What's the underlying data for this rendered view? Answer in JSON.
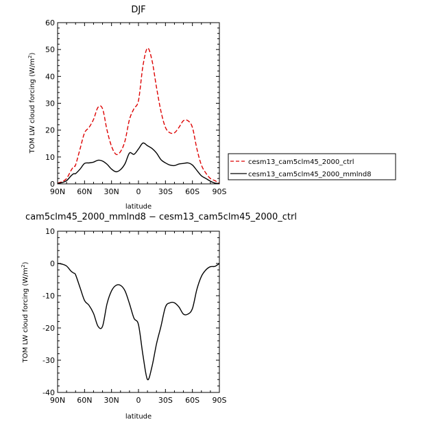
{
  "colors": {
    "ctrl": "#dd0000",
    "mmlnd8": "#000000",
    "diff": "#000000",
    "axis": "#000000"
  },
  "legend": {
    "entries": [
      "cesm13_cam5clm45_2000_ctrl",
      "cesm13_cam5clm45_2000_mmlnd8"
    ],
    "placement": "right"
  },
  "chart_data": [
    {
      "type": "line",
      "title": "DJF",
      "xlabel": "latitude",
      "ylabel": "TOM LW cloud forcing (W/m²)",
      "ylabel_main": "TOM LW cloud forcing (W/m",
      "ylabel_exp": "2",
      "ylabel_end": ")",
      "xlim": [
        90,
        -90
      ],
      "ylim": [
        0,
        60
      ],
      "yticks": [
        0,
        10,
        20,
        30,
        40,
        50,
        60
      ],
      "xticks": [
        90,
        60,
        30,
        0,
        -30,
        -60,
        -90
      ],
      "xtick_labels": [
        "90N",
        "60N",
        "30N",
        "0",
        "30S",
        "60S",
        "90S"
      ],
      "x": [
        90,
        85,
        80,
        75,
        72,
        70,
        65,
        60,
        55,
        50,
        45,
        40,
        35,
        30,
        25,
        20,
        15,
        10,
        5,
        0,
        -5,
        -10,
        -15,
        -20,
        -25,
        -30,
        -35,
        -40,
        -45,
        -50,
        -55,
        -60,
        -65,
        -70,
        -75,
        -80,
        -85,
        -90
      ],
      "series": [
        {
          "name": "cesm13_cam5clm45_2000_ctrl",
          "style": "dashed",
          "values": [
            0.3,
            0.8,
            2,
            5,
            6.5,
            7,
            13,
            19,
            21,
            24,
            28.5,
            28,
            20,
            14,
            11,
            12,
            16,
            24,
            28,
            31,
            44,
            50.5,
            46,
            36,
            27,
            21,
            19,
            19,
            21,
            23.5,
            23.5,
            21,
            13,
            7,
            4,
            2,
            1.2,
            0.2
          ]
        },
        {
          "name": "cesm13_cam5clm45_2000_mmlnd8",
          "style": "solid",
          "values": [
            0.2,
            0.5,
            1.2,
            3,
            3.8,
            3.8,
            5.5,
            7.6,
            7.8,
            8.1,
            8.8,
            8.5,
            7.3,
            5.5,
            4.5,
            5.3,
            7.5,
            11.5,
            11,
            13,
            15.2,
            14.2,
            13.2,
            11.5,
            9,
            7.8,
            7,
            6.8,
            7.4,
            7.6,
            7.8,
            7,
            5,
            3,
            2,
            1,
            0.3,
            0.1
          ]
        }
      ]
    },
    {
      "type": "line",
      "title": "cam5clm45_2000_mmlnd8 − cesm13_cam5clm45_2000_ctrl",
      "xlabel": "latitude",
      "ylabel": "TOM LW cloud forcing (W/m²)",
      "ylabel_main": "TOM LW cloud forcing (W/m",
      "ylabel_exp": "2",
      "ylabel_end": ")",
      "xlim": [
        90,
        -90
      ],
      "ylim": [
        -40,
        10
      ],
      "yticks": [
        -40,
        -30,
        -20,
        -10,
        0,
        10
      ],
      "xticks": [
        90,
        60,
        30,
        0,
        -30,
        -60,
        -90
      ],
      "xtick_labels": [
        "90N",
        "60N",
        "30N",
        "0",
        "30S",
        "60S",
        "90S"
      ],
      "x": [
        90,
        85,
        80,
        75,
        72,
        70,
        65,
        60,
        55,
        50,
        45,
        40,
        35,
        30,
        25,
        20,
        15,
        10,
        5,
        0,
        -5,
        -10,
        -15,
        -20,
        -25,
        -30,
        -35,
        -40,
        -45,
        -50,
        -55,
        -60,
        -65,
        -70,
        -75,
        -80,
        -85,
        -90
      ],
      "series": [
        {
          "name": "",
          "style": "solid",
          "values": [
            0,
            -0.2,
            -0.8,
            -2.4,
            -3,
            -3.5,
            -7.5,
            -11.5,
            -13,
            -15.5,
            -19.5,
            -19.5,
            -12.5,
            -8.5,
            -6.8,
            -6.8,
            -8.5,
            -12.5,
            -17,
            -19,
            -28.5,
            -36,
            -32,
            -25,
            -19.5,
            -13.5,
            -12.2,
            -12.2,
            -13.5,
            -15.7,
            -15.7,
            -14,
            -8,
            -4,
            -2,
            -1,
            -0.9,
            0
          ]
        }
      ]
    }
  ]
}
